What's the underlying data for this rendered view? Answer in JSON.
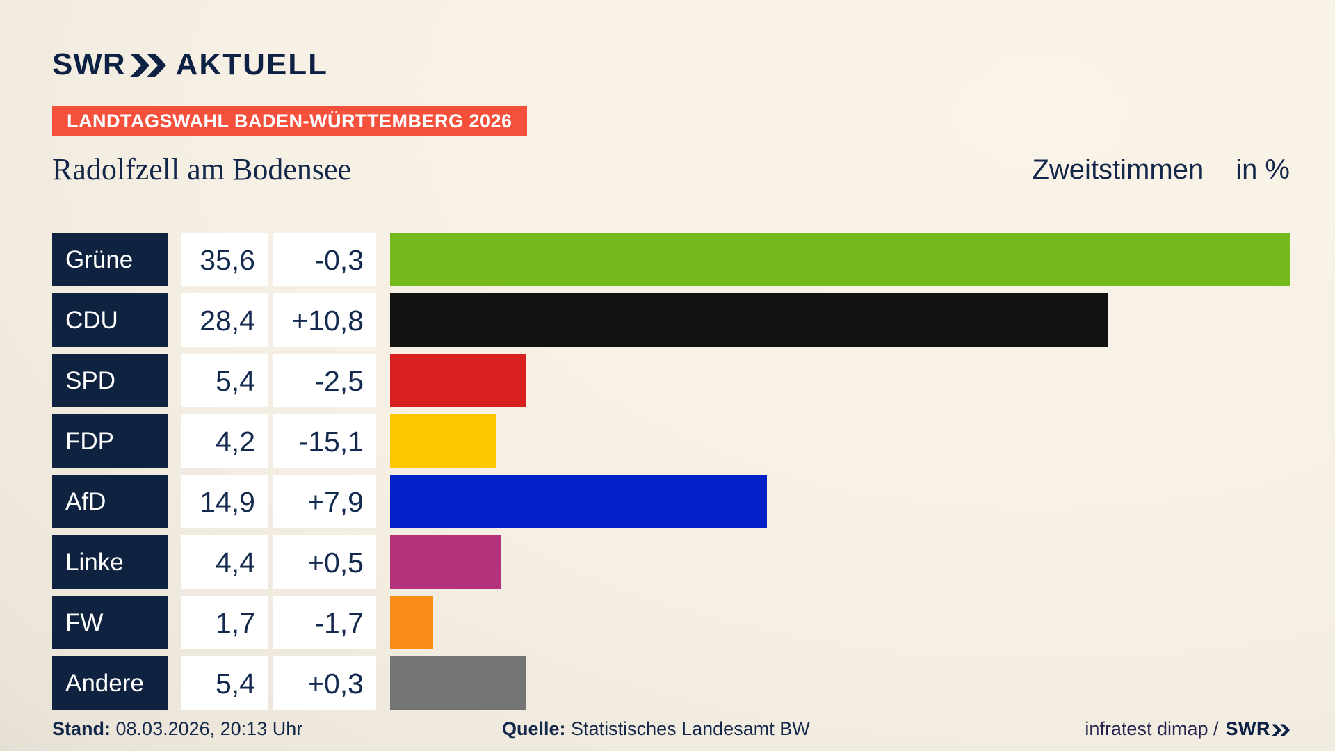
{
  "header": {
    "logo_brand": "SWR",
    "logo_product": "AKTUELL",
    "banner": "LANDTAGSWAHL BADEN-WÜRTTEMBERG 2026",
    "title": "Radolfzell am Bodensee",
    "subtitle": "Zweitstimmen",
    "unit": "in %"
  },
  "chart_data": {
    "type": "bar",
    "orientation": "horizontal",
    "title": "Radolfzell am Bodensee — Zweitstimmen in %",
    "max_percent_scale": 35.6,
    "categories": [
      "Grüne",
      "CDU",
      "SPD",
      "FDP",
      "AfD",
      "Linke",
      "FW",
      "Andere"
    ],
    "values": [
      35.6,
      28.4,
      5.4,
      4.2,
      14.9,
      4.4,
      1.7,
      5.4
    ],
    "diffs": [
      -0.3,
      10.8,
      -2.5,
      -15.1,
      7.9,
      0.5,
      -1.7,
      0.3
    ],
    "rows": [
      {
        "party": "Grüne",
        "value": "35,6",
        "diff": "-0,3",
        "percent": 35.6,
        "color": "#74b91e"
      },
      {
        "party": "CDU",
        "value": "28,4",
        "diff": "+10,8",
        "percent": 28.4,
        "color": "#121212"
      },
      {
        "party": "SPD",
        "value": "5,4",
        "diff": "-2,5",
        "percent": 5.4,
        "color": "#d7201f"
      },
      {
        "party": "FDP",
        "value": "4,2",
        "diff": "-15,1",
        "percent": 4.2,
        "color": "#fdc800"
      },
      {
        "party": "AfD",
        "value": "14,9",
        "diff": "+7,9",
        "percent": 14.9,
        "color": "#0221c8"
      },
      {
        "party": "Linke",
        "value": "4,4",
        "diff": "+0,5",
        "percent": 4.4,
        "color": "#b53179"
      },
      {
        "party": "FW",
        "value": "1,7",
        "diff": "-1,7",
        "percent": 1.7,
        "color": "#fa8d18"
      },
      {
        "party": "Andere",
        "value": "5,4",
        "diff": "+0,3",
        "percent": 5.4,
        "color": "#757575"
      }
    ]
  },
  "footer": {
    "stand_label": "Stand:",
    "stand_value": "08.03.2026, 20:13 Uhr",
    "quelle_label": "Quelle:",
    "quelle_value": "Statistisches Landesamt BW",
    "credit": "infratest dimap /",
    "credit_brand": "SWR"
  },
  "colors": {
    "navy_text": "#12274a",
    "navy_box": "#0f2240",
    "banner_red": "#f4503c",
    "background_light": "#f8f1e5",
    "background_dark": "#c2bdb5",
    "white_box": "#ffffff"
  }
}
